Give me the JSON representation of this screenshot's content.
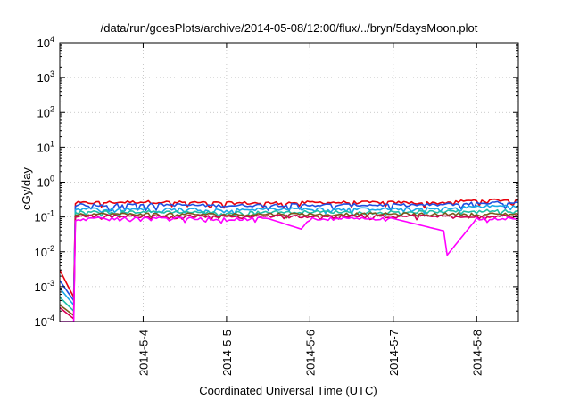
{
  "chart_data": {
    "type": "line",
    "title": "/data/run/goesPlots/archive/2014-05-08/12:00/flux/../bryn/5daysMoon.plot",
    "xlabel": "Coordinated Universal Time (UTC)",
    "ylabel": "cGy/day",
    "yscale": "log",
    "ylim": [
      0.0001,
      10000
    ],
    "xlim": [
      "2014-05-03 00:00",
      "2014-05-08 12:00"
    ],
    "xticks": [
      {
        "label": "2014-5-4",
        "value": "2014-05-04 00:00"
      },
      {
        "label": "2014-5-5",
        "value": "2014-05-05 00:00"
      },
      {
        "label": "2014-5-6",
        "value": "2014-05-06 00:00"
      },
      {
        "label": "2014-5-7",
        "value": "2014-05-07 00:00"
      },
      {
        "label": "2014-5-8",
        "value": "2014-05-08 00:00"
      }
    ],
    "yticks": [
      {
        "base": "10",
        "exp": "-4",
        "value": 0.0001
      },
      {
        "base": "10",
        "exp": "-3",
        "value": 0.001
      },
      {
        "base": "10",
        "exp": "-2",
        "value": 0.01
      },
      {
        "base": "10",
        "exp": "-1",
        "value": 0.1
      },
      {
        "base": "10",
        "exp": "0",
        "value": 1
      },
      {
        "base": "10",
        "exp": "1",
        "value": 10
      },
      {
        "base": "10",
        "exp": "2",
        "value": 100
      },
      {
        "base": "10",
        "exp": "3",
        "value": 1000
      },
      {
        "base": "10",
        "exp": "4",
        "value": 10000
      }
    ],
    "grid": true,
    "legend": "none",
    "series": [
      {
        "color": "#e8000b",
        "dip": 0.9,
        "values": [
          [
            "2014-05-03 00:00",
            0.003
          ],
          [
            "2014-05-03 04:00",
            0.0005
          ],
          [
            "2014-05-03 04:30",
            0.25
          ],
          [
            "2014-05-03 12:00",
            0.26
          ],
          [
            "2014-05-04 00:00",
            0.27
          ],
          [
            "2014-05-04 12:00",
            0.26
          ],
          [
            "2014-05-05 00:00",
            0.25
          ],
          [
            "2014-05-05 12:00",
            0.25
          ],
          [
            "2014-05-06 00:00",
            0.26
          ],
          [
            "2014-05-06 12:00",
            0.26
          ],
          [
            "2014-05-07 00:00",
            0.26
          ],
          [
            "2014-05-07 12:00",
            0.25
          ],
          [
            "2014-05-08 00:00",
            0.3
          ],
          [
            "2014-05-08 12:00",
            0.31
          ]
        ]
      },
      {
        "color": "#1f4fe0",
        "dip": 1.0,
        "values": [
          [
            "2014-05-03 00:00",
            0.0015
          ],
          [
            "2014-05-03 04:00",
            0.0004
          ],
          [
            "2014-05-03 04:30",
            0.22
          ],
          [
            "2014-05-03 12:00",
            0.22
          ],
          [
            "2014-05-04 00:00",
            0.23
          ],
          [
            "2014-05-04 12:00",
            0.22
          ],
          [
            "2014-05-05 00:00",
            0.21
          ],
          [
            "2014-05-05 12:00",
            0.22
          ],
          [
            "2014-05-06 00:00",
            0.22
          ],
          [
            "2014-05-06 12:00",
            0.22
          ],
          [
            "2014-05-07 00:00",
            0.22
          ],
          [
            "2014-05-07 12:00",
            0.22
          ],
          [
            "2014-05-08 00:00",
            0.25
          ],
          [
            "2014-05-08 12:00",
            0.26
          ]
        ]
      },
      {
        "color": "#1aa8e8",
        "dip": 0.7,
        "values": [
          [
            "2014-05-03 00:00",
            0.0009
          ],
          [
            "2014-05-03 04:00",
            0.0003
          ],
          [
            "2014-05-03 04:30",
            0.17
          ],
          [
            "2014-05-03 12:00",
            0.17
          ],
          [
            "2014-05-04 00:00",
            0.17
          ],
          [
            "2014-05-04 12:00",
            0.17
          ],
          [
            "2014-05-05 00:00",
            0.16
          ],
          [
            "2014-05-05 12:00",
            0.17
          ],
          [
            "2014-05-06 00:00",
            0.17
          ],
          [
            "2014-05-06 12:00",
            0.17
          ],
          [
            "2014-05-07 00:00",
            0.17
          ],
          [
            "2014-05-07 12:00",
            0.17
          ],
          [
            "2014-05-08 00:00",
            0.2
          ],
          [
            "2014-05-08 12:00",
            0.21
          ]
        ]
      },
      {
        "color": "#1fbfa8",
        "dip": 0.6,
        "values": [
          [
            "2014-05-03 00:00",
            0.0005
          ],
          [
            "2014-05-03 04:00",
            0.0002
          ],
          [
            "2014-05-03 04:30",
            0.14
          ],
          [
            "2014-05-03 12:00",
            0.14
          ],
          [
            "2014-05-04 00:00",
            0.14
          ],
          [
            "2014-05-04 12:00",
            0.14
          ],
          [
            "2014-05-05 00:00",
            0.13
          ],
          [
            "2014-05-05 12:00",
            0.14
          ],
          [
            "2014-05-06 00:00",
            0.14
          ],
          [
            "2014-05-06 12:00",
            0.14
          ],
          [
            "2014-05-07 00:00",
            0.14
          ],
          [
            "2014-05-07 12:00",
            0.14
          ],
          [
            "2014-05-08 00:00",
            0.15
          ],
          [
            "2014-05-08 12:00",
            0.15
          ]
        ]
      },
      {
        "color": "#7a5a1a",
        "dip": 0.5,
        "values": [
          [
            "2014-05-03 00:00",
            0.0003
          ],
          [
            "2014-05-03 04:00",
            0.00015
          ],
          [
            "2014-05-03 04:30",
            0.12
          ],
          [
            "2014-05-03 12:00",
            0.12
          ],
          [
            "2014-05-04 00:00",
            0.12
          ],
          [
            "2014-05-04 12:00",
            0.12
          ],
          [
            "2014-05-05 00:00",
            0.115
          ],
          [
            "2014-05-05 12:00",
            0.12
          ],
          [
            "2014-05-06 00:00",
            0.12
          ],
          [
            "2014-05-06 12:00",
            0.12
          ],
          [
            "2014-05-07 00:00",
            0.12
          ],
          [
            "2014-05-07 12:00",
            0.12
          ],
          [
            "2014-05-08 00:00",
            0.12
          ],
          [
            "2014-05-08 12:00",
            0.12
          ]
        ]
      },
      {
        "color": "#d40055",
        "dip": 0.5,
        "values": [
          [
            "2014-05-03 00:00",
            0.00025
          ],
          [
            "2014-05-03 04:00",
            0.00012
          ],
          [
            "2014-05-03 04:30",
            0.105
          ],
          [
            "2014-05-03 12:00",
            0.105
          ],
          [
            "2014-05-04 00:00",
            0.105
          ],
          [
            "2014-05-04 12:00",
            0.105
          ],
          [
            "2014-05-05 00:00",
            0.1
          ],
          [
            "2014-05-05 12:00",
            0.105
          ],
          [
            "2014-05-06 00:00",
            0.105
          ],
          [
            "2014-05-06 12:00",
            0.105
          ],
          [
            "2014-05-07 00:00",
            0.105
          ],
          [
            "2014-05-07 12:00",
            0.105
          ],
          [
            "2014-05-08 00:00",
            0.105
          ],
          [
            "2014-05-08 12:00",
            0.105
          ]
        ]
      },
      {
        "color": "#ff00ff",
        "dip": 0.5,
        "values": [
          [
            "2014-05-03 00:00",
            0.0001
          ],
          [
            "2014-05-03 04:00",
            0.0001
          ],
          [
            "2014-05-03 04:30",
            0.085
          ],
          [
            "2014-05-03 12:00",
            0.09
          ],
          [
            "2014-05-04 00:00",
            0.09
          ],
          [
            "2014-05-04 12:00",
            0.09
          ],
          [
            "2014-05-05 00:00",
            0.085
          ],
          [
            "2014-05-05 12:00",
            0.09
          ],
          [
            "2014-05-05 21:30",
            0.045
          ],
          [
            "2014-05-06 00:00",
            0.09
          ],
          [
            "2014-05-06 12:00",
            0.09
          ],
          [
            "2014-05-07 00:00",
            0.09
          ],
          [
            "2014-05-07 14:30",
            0.04
          ],
          [
            "2014-05-07 15:30",
            0.008
          ],
          [
            "2014-05-08 00:00",
            0.09
          ],
          [
            "2014-05-08 12:00",
            0.09
          ]
        ]
      }
    ]
  }
}
